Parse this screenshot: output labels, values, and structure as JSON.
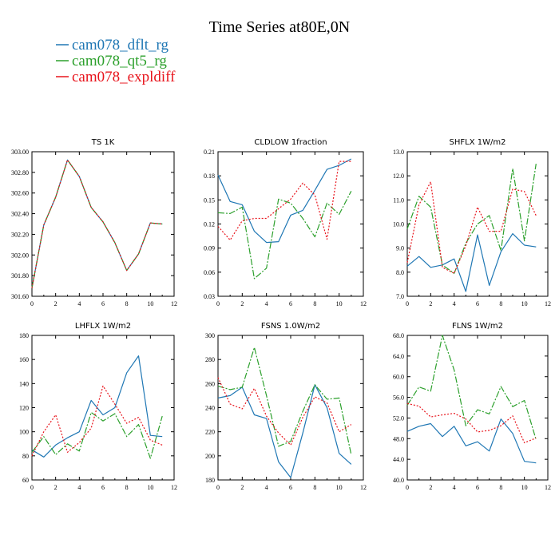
{
  "title": "Time Series at80E,0N",
  "legend": [
    {
      "label": "cam078_dflt_rg",
      "color": "#1f77b4"
    },
    {
      "label": "cam078_qt5_rg",
      "color": "#2ca02c"
    },
    {
      "label": "cam078_expldiff",
      "color": "#e8141c"
    }
  ],
  "chart_data": [
    {
      "type": "line",
      "title": "TS   1K",
      "x": [
        0,
        1,
        2,
        3,
        4,
        5,
        6,
        7,
        8,
        9,
        10,
        11
      ],
      "xlim": [
        0,
        12
      ],
      "xticks": [
        "0",
        "2",
        "4",
        "6",
        "8",
        "10",
        "12"
      ],
      "ylim": [
        301.6,
        303.0
      ],
      "yticks": [
        "301.60",
        "301.80",
        "302.00",
        "302.20",
        "302.40",
        "302.60",
        "302.80",
        "303.00"
      ],
      "series": [
        {
          "name": "cam078_dflt_rg",
          "values": [
            301.68,
            302.29,
            302.56,
            302.92,
            302.76,
            302.46,
            302.32,
            302.12,
            301.85,
            302.01,
            302.31,
            302.3
          ]
        },
        {
          "name": "cam078_qt5_rg",
          "values": [
            301.68,
            302.29,
            302.56,
            302.92,
            302.76,
            302.46,
            302.32,
            302.12,
            301.85,
            302.01,
            302.31,
            302.3
          ]
        },
        {
          "name": "cam078_expldiff",
          "values": [
            301.68,
            302.29,
            302.56,
            302.92,
            302.76,
            302.46,
            302.32,
            302.12,
            301.85,
            302.01,
            302.31,
            302.3
          ]
        }
      ]
    },
    {
      "type": "line",
      "title": "CLDLOW   1fraction",
      "x": [
        0,
        1,
        2,
        3,
        4,
        5,
        6,
        7,
        8,
        9,
        10,
        11
      ],
      "xlim": [
        0,
        12
      ],
      "xticks": [
        "0",
        "2",
        "4",
        "6",
        "8",
        "10",
        "12"
      ],
      "ylim": [
        0.03,
        0.21
      ],
      "yticks": [
        "0.03",
        "0.06",
        "0.09",
        "0.12",
        "0.15",
        "0.18",
        "0.21"
      ],
      "series": [
        {
          "name": "cam078_dflt_rg",
          "values": [
            0.181,
            0.148,
            0.144,
            0.111,
            0.097,
            0.098,
            0.131,
            0.137,
            0.162,
            0.188,
            0.193,
            0.201
          ]
        },
        {
          "name": "cam078_qt5_rg",
          "values": [
            0.134,
            0.133,
            0.141,
            0.052,
            0.065,
            0.151,
            0.146,
            0.127,
            0.104,
            0.146,
            0.132,
            0.161
          ]
        },
        {
          "name": "cam078_expldiff",
          "values": [
            0.117,
            0.1,
            0.124,
            0.127,
            0.127,
            0.139,
            0.151,
            0.171,
            0.156,
            0.101,
            0.198,
            0.198
          ]
        }
      ]
    },
    {
      "type": "line",
      "title": "SHFLX   1W/m2",
      "x": [
        0,
        1,
        2,
        3,
        4,
        5,
        6,
        7,
        8,
        9,
        10,
        11
      ],
      "xlim": [
        0,
        12
      ],
      "xticks": [
        "0",
        "2",
        "4",
        "6",
        "8",
        "10",
        "12"
      ],
      "ylim": [
        7.0,
        13.0
      ],
      "yticks": [
        "7.0",
        "8.0",
        "9.0",
        "10.0",
        "11.0",
        "12.0",
        "13.0"
      ],
      "series": [
        {
          "name": "cam078_dflt_rg",
          "values": [
            8.25,
            8.65,
            8.2,
            8.3,
            8.55,
            7.2,
            9.55,
            7.45,
            8.85,
            9.6,
            9.12,
            9.05
          ]
        },
        {
          "name": "cam078_qt5_rg",
          "values": [
            9.8,
            11.15,
            10.7,
            8.3,
            7.95,
            9.2,
            10.0,
            10.35,
            8.9,
            12.3,
            9.3,
            12.5
          ]
        },
        {
          "name": "cam078_expldiff",
          "values": [
            8.4,
            10.8,
            11.75,
            8.2,
            7.95,
            9.1,
            10.7,
            9.7,
            9.7,
            11.45,
            11.35,
            10.35
          ]
        }
      ]
    },
    {
      "type": "line",
      "title": "LHFLX   1W/m2",
      "x": [
        0,
        1,
        2,
        3,
        4,
        5,
        6,
        7,
        8,
        9,
        10,
        11
      ],
      "xlim": [
        0,
        12
      ],
      "xticks": [
        "0",
        "2",
        "4",
        "6",
        "8",
        "10",
        "12"
      ],
      "ylim": [
        60,
        180
      ],
      "yticks": [
        "60",
        "80",
        "100",
        "120",
        "140",
        "160",
        "180"
      ],
      "series": [
        {
          "name": "cam078_dflt_rg",
          "values": [
            85,
            79,
            89,
            95,
            100,
            126,
            114,
            120,
            149,
            163,
            97,
            96
          ]
        },
        {
          "name": "cam078_qt5_rg",
          "values": [
            83,
            96,
            81,
            90,
            84,
            116,
            109,
            115,
            96,
            106,
            78,
            113
          ]
        },
        {
          "name": "cam078_expldiff",
          "values": [
            80,
            100,
            114,
            83,
            91,
            103,
            138,
            123,
            107,
            112,
            93,
            89
          ]
        }
      ]
    },
    {
      "type": "line",
      "title": "FSNS   1.0W/m2",
      "x": [
        0,
        1,
        2,
        3,
        4,
        5,
        6,
        7,
        8,
        9,
        10,
        11
      ],
      "xlim": [
        0,
        12
      ],
      "xticks": [
        "0",
        "2",
        "4",
        "6",
        "8",
        "10",
        "12"
      ],
      "ylim": [
        180,
        300
      ],
      "yticks": [
        "180",
        "200",
        "220",
        "240",
        "260",
        "280",
        "300"
      ],
      "series": [
        {
          "name": "cam078_dflt_rg",
          "values": [
            248,
            250,
            257,
            234,
            231,
            195,
            182,
            219,
            259,
            240,
            202,
            193
          ]
        },
        {
          "name": "cam078_qt5_rg",
          "values": [
            258,
            255,
            257,
            290,
            250,
            208,
            212,
            237,
            259,
            247,
            248,
            201
          ]
        },
        {
          "name": "cam078_expldiff",
          "values": [
            265,
            243,
            239,
            256,
            233,
            219,
            209,
            232,
            249,
            244,
            220,
            226
          ]
        }
      ]
    },
    {
      "type": "line",
      "title": "FLNS   1W/m2",
      "x": [
        0,
        1,
        2,
        3,
        4,
        5,
        6,
        7,
        8,
        9,
        10,
        11
      ],
      "xlim": [
        0,
        12
      ],
      "xticks": [
        "0",
        "2",
        "4",
        "6",
        "8",
        "10",
        "12"
      ],
      "ylim": [
        40.0,
        68.0
      ],
      "yticks": [
        "40.0",
        "44.0",
        "48.0",
        "52.0",
        "56.0",
        "60.0",
        "64.0",
        "68.0"
      ],
      "series": [
        {
          "name": "cam078_dflt_rg",
          "values": [
            49.4,
            50.4,
            50.9,
            48.4,
            50.4,
            46.6,
            47.4,
            45.6,
            51.8,
            49.0,
            43.6,
            43.3
          ]
        },
        {
          "name": "cam078_qt5_rg",
          "values": [
            54.5,
            58.0,
            57.2,
            68.0,
            61.3,
            50.5,
            53.6,
            52.8,
            58.1,
            54.2,
            55.4,
            47.8
          ]
        },
        {
          "name": "cam078_expldiff",
          "values": [
            54.8,
            54.3,
            52.2,
            52.6,
            52.9,
            51.8,
            49.3,
            49.6,
            50.5,
            52.4,
            47.2,
            48.1
          ]
        }
      ]
    }
  ]
}
